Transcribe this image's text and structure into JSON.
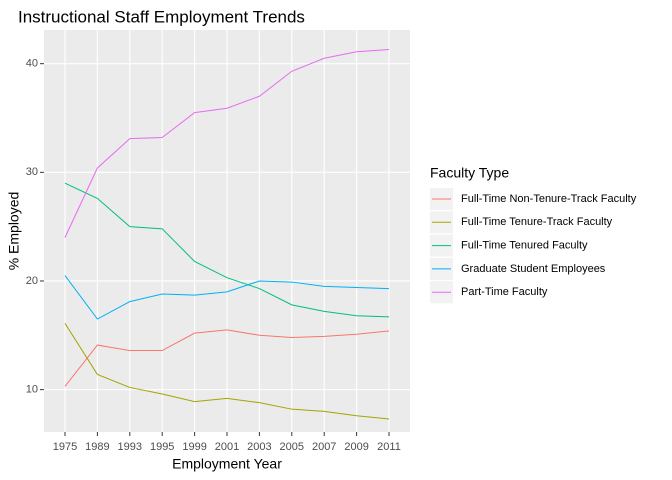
{
  "chart_data": {
    "type": "line",
    "title": "Instructional Staff Employment Trends",
    "x_label": "Employment Year",
    "y_label": "% Employed",
    "legend_title": "Faculty Type",
    "categories": [
      "1975",
      "1989",
      "1993",
      "1995",
      "1999",
      "2001",
      "2003",
      "2005",
      "2007",
      "2009",
      "2011"
    ],
    "series": [
      {
        "name": "Full-Time Non-Tenure-Track Faculty",
        "color": "#F8766D",
        "values": [
          10.3,
          14.1,
          13.6,
          13.6,
          15.2,
          15.5,
          15.0,
          14.8,
          14.9,
          15.1,
          15.4
        ]
      },
      {
        "name": "Full-Time Tenure-Track Faculty",
        "color": "#A3A500",
        "values": [
          16.1,
          11.4,
          10.2,
          9.6,
          8.9,
          9.2,
          8.8,
          8.2,
          8.0,
          7.6,
          7.3
        ]
      },
      {
        "name": "Full-Time Tenured Faculty",
        "color": "#00BF7D",
        "values": [
          29.0,
          27.6,
          25.0,
          24.8,
          21.8,
          20.3,
          19.3,
          17.8,
          17.2,
          16.8,
          16.7
        ]
      },
      {
        "name": "Graduate Student Employees",
        "color": "#00B0F6",
        "values": [
          20.5,
          16.5,
          18.1,
          18.8,
          18.7,
          19.0,
          20.0,
          19.9,
          19.5,
          19.4,
          19.3
        ]
      },
      {
        "name": "Part-Time Faculty",
        "color": "#E76BF3",
        "values": [
          24.0,
          30.4,
          33.1,
          33.2,
          35.5,
          35.9,
          37.0,
          39.3,
          40.5,
          41.1,
          41.3
        ]
      }
    ],
    "ylim": [
      6.1,
      43.1
    ],
    "yticks": [
      10,
      20,
      30,
      40
    ],
    "grid": true,
    "legend": "right"
  }
}
